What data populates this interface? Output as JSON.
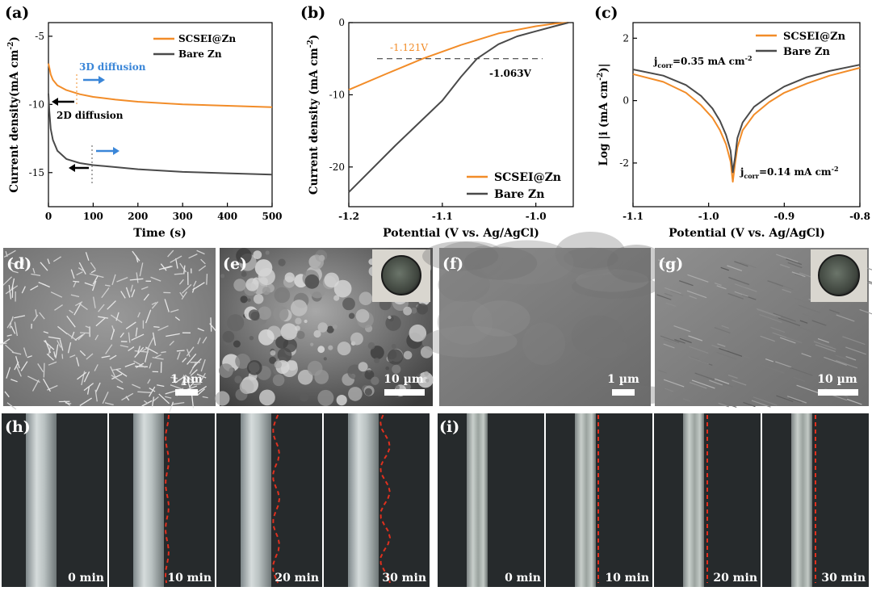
{
  "colors": {
    "scsei": "#f28c28",
    "bare": "#4a4a4a",
    "arrow_blue": "#3a86d8",
    "arrow_black": "#000000",
    "red_dash": "#e0301e"
  },
  "chart_data": [
    {
      "panel": "(a)",
      "type": "line",
      "xlabel": "Time (s)",
      "ylabel": "Current density(mA cm",
      "ylabel_sup": "-2",
      "ylabel_close": ")",
      "xlim": [
        0,
        500
      ],
      "ylim": [
        -17.5,
        -4
      ],
      "xticks": [
        0,
        100,
        200,
        300,
        400,
        500
      ],
      "yticks": [
        -5,
        -10,
        -15
      ],
      "legend_placement": "top-right",
      "series": [
        {
          "name": "SCSEI@Zn",
          "color_key": "scsei",
          "x": [
            0,
            2,
            5,
            10,
            20,
            40,
            70,
            100,
            150,
            200,
            300,
            400,
            500
          ],
          "y": [
            -7.0,
            -7.3,
            -7.8,
            -8.2,
            -8.6,
            -8.95,
            -9.25,
            -9.45,
            -9.65,
            -9.8,
            -10.0,
            -10.1,
            -10.2
          ]
        },
        {
          "name": "Bare Zn",
          "color_key": "bare",
          "x": [
            0,
            2,
            5,
            10,
            20,
            40,
            70,
            100,
            150,
            200,
            300,
            400,
            500
          ],
          "y": [
            -9.2,
            -10.5,
            -11.8,
            -12.6,
            -13.4,
            -14.0,
            -14.3,
            -14.45,
            -14.6,
            -14.75,
            -14.95,
            -15.05,
            -15.15
          ]
        }
      ],
      "annotations": [
        {
          "text": "3D diffusion",
          "color_key": "arrow_blue"
        },
        {
          "text": "2D diffusion",
          "color_key": "arrow_black"
        }
      ]
    },
    {
      "panel": "(b)",
      "type": "line",
      "xlabel": "Potential (V vs. Ag/AgCl)",
      "ylabel": "Current density (mA cm",
      "ylabel_sup": "-2",
      "ylabel_close": ")",
      "xlim": [
        -1.2,
        -0.96
      ],
      "ylim": [
        -25.5,
        0
      ],
      "xticks": [
        -1.2,
        -1.1,
        -1.0
      ],
      "xticklabels": [
        "-1.2",
        "-1.1",
        "-1.0"
      ],
      "yticks": [
        0,
        -10,
        -20
      ],
      "legend_placement": "bottom-right",
      "series": [
        {
          "name": "SCSEI@Zn",
          "color_key": "scsei",
          "x": [
            -1.2,
            -1.16,
            -1.121,
            -1.08,
            -1.04,
            -1.0,
            -0.98,
            -0.965
          ],
          "y": [
            -9.3,
            -7.1,
            -5.0,
            -3.1,
            -1.5,
            -0.5,
            -0.15,
            0
          ]
        },
        {
          "name": "Bare Zn",
          "color_key": "bare",
          "x": [
            -1.2,
            -1.15,
            -1.1,
            -1.08,
            -1.063,
            -1.04,
            -1.02,
            -1.0,
            -0.98,
            -0.965
          ],
          "y": [
            -23.5,
            -17.0,
            -10.8,
            -7.5,
            -5.0,
            -3.0,
            -1.9,
            -1.2,
            -0.5,
            0
          ]
        }
      ],
      "reference_line": {
        "y": -5.0,
        "style": "dashed"
      },
      "annotations": [
        {
          "text": "-1.121V",
          "color_key": "scsei"
        },
        {
          "text": "-1.063V",
          "color_key": "arrow_black"
        }
      ]
    },
    {
      "panel": "(c)",
      "type": "line",
      "xlabel": "Potential (V vs. Ag/AgCl)",
      "ylabel": "Log |i (mA cm",
      "ylabel_sup": "-2",
      "ylabel_close": ")|",
      "xlim": [
        -1.1,
        -0.8
      ],
      "ylim": [
        -3.4,
        2.5
      ],
      "xticks": [
        -1.1,
        -1.0,
        -0.9,
        -0.8
      ],
      "xticklabels": [
        "-1.1",
        "-1.0",
        "-0.9",
        "-0.8"
      ],
      "yticks": [
        2,
        0,
        -2
      ],
      "legend_placement": "top-right",
      "series": [
        {
          "name": "SCSEI@Zn",
          "color_key": "scsei",
          "x": [
            -1.1,
            -1.06,
            -1.03,
            -1.01,
            -0.995,
            -0.985,
            -0.977,
            -0.971,
            -0.968,
            -0.965,
            -0.962,
            -0.955,
            -0.94,
            -0.92,
            -0.9,
            -0.87,
            -0.84,
            -0.8
          ],
          "y": [
            0.85,
            0.6,
            0.25,
            -0.15,
            -0.55,
            -0.95,
            -1.4,
            -1.95,
            -2.6,
            -2.0,
            -1.5,
            -0.95,
            -0.45,
            -0.05,
            0.25,
            0.55,
            0.8,
            1.05
          ]
        },
        {
          "name": "Bare Zn",
          "color_key": "bare",
          "x": [
            -1.1,
            -1.06,
            -1.03,
            -1.01,
            -0.995,
            -0.985,
            -0.977,
            -0.971,
            -0.968,
            -0.965,
            -0.962,
            -0.955,
            -0.94,
            -0.92,
            -0.9,
            -0.87,
            -0.84,
            -0.8
          ],
          "y": [
            1.0,
            0.8,
            0.5,
            0.15,
            -0.25,
            -0.65,
            -1.1,
            -1.6,
            -2.3,
            -1.8,
            -1.2,
            -0.7,
            -0.2,
            0.15,
            0.45,
            0.75,
            0.95,
            1.15
          ]
        }
      ],
      "annotations": [
        {
          "base": "j",
          "sub": "corr",
          "rest": "=0.35 mA cm",
          "sup": "-2"
        },
        {
          "base": "j",
          "sub": "corr",
          "rest": "=0.14 mA cm",
          "sup": "-2"
        }
      ]
    }
  ],
  "sem_panels": [
    {
      "label": "(d)",
      "scale": "1 µm",
      "texture": "flakes"
    },
    {
      "label": "(e)",
      "scale": "10 µm",
      "texture": "rough",
      "inset": "coin"
    },
    {
      "label": "(f)",
      "scale": "1 µm",
      "texture": "smooth"
    },
    {
      "label": "(g)",
      "scale": "10 µm",
      "texture": "striated",
      "inset": "coin"
    }
  ],
  "optical": [
    {
      "label": "(h)",
      "times": [
        "0 min",
        "10 min",
        "20 min",
        "30 min"
      ]
    },
    {
      "label": "(i)",
      "times": [
        "0 min",
        "10 min",
        "20 min",
        "30 min"
      ]
    }
  ]
}
